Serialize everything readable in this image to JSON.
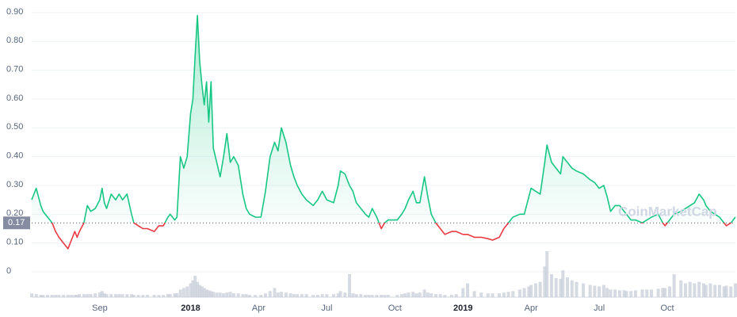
{
  "chart_data": {
    "type": "line",
    "watermark": "CoinMarketCap",
    "xlim": [
      0,
      31
    ],
    "xticks": [
      {
        "value": 3,
        "label": "Sep"
      },
      {
        "value": 7,
        "label": "2018"
      },
      {
        "value": 10,
        "label": "Apr"
      },
      {
        "value": 13,
        "label": "Jul"
      },
      {
        "value": 16,
        "label": "Oct"
      },
      {
        "value": 19,
        "label": "2019"
      },
      {
        "value": 22,
        "label": "Apr"
      },
      {
        "value": 25,
        "label": "Jul"
      },
      {
        "value": 28,
        "label": "Oct"
      }
    ],
    "ylim": [
      0,
      0.9
    ],
    "yticks": [
      0,
      {
        "value": 0.1,
        "label": "0.10"
      },
      {
        "value": 0.2,
        "label": "0.20"
      },
      {
        "value": 0.3,
        "label": "0.30"
      },
      {
        "value": 0.4,
        "label": "0.40"
      },
      {
        "value": 0.5,
        "label": "0.50"
      },
      {
        "value": 0.6,
        "label": "0.60"
      },
      {
        "value": 0.7,
        "label": "0.70"
      },
      {
        "value": 0.8,
        "label": "0.80"
      },
      {
        "value": 0.9,
        "label": "0.90"
      }
    ],
    "grid": true,
    "baseline": 0.17,
    "up_color": "#16c784",
    "down_color": "#ea3943",
    "volume_color": "#c4cad6",
    "x": [
      0,
      0.2,
      0.4,
      0.5,
      0.7,
      0.9,
      1.05,
      1.2,
      1.4,
      1.6,
      1.75,
      1.9,
      2.0,
      2.1,
      2.3,
      2.45,
      2.6,
      2.8,
      3.0,
      3.1,
      3.2,
      3.3,
      3.5,
      3.7,
      3.85,
      4.0,
      4.2,
      4.4,
      4.5,
      4.7,
      4.9,
      5.1,
      5.4,
      5.6,
      5.8,
      6.0,
      6.1,
      6.3,
      6.4,
      6.55,
      6.7,
      6.85,
      7.0,
      7.1,
      7.2,
      7.3,
      7.4,
      7.5,
      7.6,
      7.7,
      7.8,
      7.9,
      8.0,
      8.15,
      8.3,
      8.45,
      8.6,
      8.75,
      8.9,
      9.1,
      9.3,
      9.45,
      9.6,
      9.85,
      10.1,
      10.3,
      10.5,
      10.7,
      10.85,
      11.0,
      11.2,
      11.4,
      11.55,
      11.7,
      11.9,
      12.1,
      12.4,
      12.6,
      12.8,
      13.0,
      13.3,
      13.5,
      13.6,
      13.8,
      14.0,
      14.15,
      14.3,
      14.5,
      14.7,
      14.85,
      15.0,
      15.2,
      15.4,
      15.55,
      15.7,
      16.1,
      16.3,
      16.45,
      16.6,
      16.8,
      16.95,
      17.1,
      17.3,
      17.45,
      17.6,
      17.8,
      18.0,
      18.2,
      18.5,
      18.7,
      19.0,
      19.2,
      19.5,
      19.8,
      20.1,
      20.3,
      20.6,
      20.8,
      21.0,
      21.2,
      21.5,
      21.7,
      21.9,
      22.0,
      22.2,
      22.4,
      22.6,
      22.7,
      22.9,
      23.1,
      23.3,
      23.4,
      23.6,
      23.8,
      24.0,
      24.3,
      24.6,
      24.8,
      25.0,
      25.2,
      25.35,
      25.5,
      25.7,
      25.9,
      26.1,
      26.2,
      26.4,
      26.6,
      26.9,
      27.1,
      27.3,
      27.6,
      27.8,
      27.9,
      28.1,
      28.3,
      28.6,
      28.8,
      29.0,
      29.2,
      29.4,
      29.6,
      29.7,
      29.9,
      30.1,
      30.3,
      30.5,
      30.6,
      30.8,
      31.0
    ],
    "values": [
      0.25,
      0.29,
      0.23,
      0.21,
      0.19,
      0.17,
      0.14,
      0.12,
      0.1,
      0.08,
      0.11,
      0.14,
      0.12,
      0.14,
      0.17,
      0.23,
      0.21,
      0.22,
      0.25,
      0.29,
      0.24,
      0.22,
      0.27,
      0.25,
      0.27,
      0.25,
      0.27,
      0.2,
      0.17,
      0.16,
      0.15,
      0.15,
      0.14,
      0.16,
      0.16,
      0.19,
      0.2,
      0.18,
      0.19,
      0.4,
      0.36,
      0.4,
      0.55,
      0.6,
      0.75,
      0.89,
      0.73,
      0.65,
      0.58,
      0.66,
      0.52,
      0.66,
      0.43,
      0.38,
      0.33,
      0.4,
      0.48,
      0.38,
      0.4,
      0.37,
      0.27,
      0.22,
      0.2,
      0.19,
      0.19,
      0.28,
      0.4,
      0.45,
      0.42,
      0.5,
      0.45,
      0.37,
      0.33,
      0.3,
      0.27,
      0.25,
      0.23,
      0.25,
      0.28,
      0.25,
      0.24,
      0.3,
      0.35,
      0.34,
      0.3,
      0.28,
      0.24,
      0.22,
      0.2,
      0.19,
      0.22,
      0.19,
      0.15,
      0.17,
      0.18,
      0.18,
      0.2,
      0.22,
      0.25,
      0.28,
      0.24,
      0.24,
      0.33,
      0.26,
      0.2,
      0.17,
      0.15,
      0.13,
      0.14,
      0.14,
      0.13,
      0.13,
      0.12,
      0.12,
      0.115,
      0.11,
      0.12,
      0.15,
      0.17,
      0.19,
      0.2,
      0.2,
      0.26,
      0.29,
      0.28,
      0.27,
      0.38,
      0.44,
      0.38,
      0.36,
      0.34,
      0.4,
      0.38,
      0.36,
      0.35,
      0.34,
      0.32,
      0.31,
      0.29,
      0.3,
      0.26,
      0.21,
      0.23,
      0.23,
      0.21,
      0.2,
      0.18,
      0.18,
      0.17,
      0.18,
      0.19,
      0.2,
      0.17,
      0.16,
      0.18,
      0.2,
      0.21,
      0.22,
      0.23,
      0.24,
      0.27,
      0.25,
      0.23,
      0.21,
      0.2,
      0.19,
      0.17,
      0.16,
      0.17,
      0.19
    ],
    "volume": [
      5,
      4,
      3,
      3,
      3,
      3,
      3,
      3,
      3,
      3,
      3,
      3,
      3,
      4,
      4,
      4,
      4,
      5,
      6,
      8,
      5,
      4,
      4,
      4,
      4,
      4,
      4,
      4,
      3,
      3,
      3,
      3,
      3,
      3,
      3,
      4,
      4,
      5,
      5,
      10,
      12,
      14,
      18,
      22,
      28,
      20,
      16,
      14,
      12,
      10,
      9,
      8,
      7,
      6,
      6,
      5,
      6,
      7,
      5,
      5,
      4,
      4,
      3,
      3,
      3,
      5,
      8,
      12,
      6,
      7,
      6,
      5,
      4,
      4,
      4,
      4,
      3,
      3,
      4,
      4,
      4,
      5,
      8,
      6,
      30,
      5,
      4,
      4,
      3,
      3,
      3,
      3,
      3,
      3,
      3,
      3,
      4,
      5,
      6,
      7,
      5,
      6,
      10,
      6,
      5,
      4,
      4,
      3,
      3,
      4,
      12,
      18,
      8,
      6,
      5,
      5,
      5,
      6,
      7,
      8,
      10,
      12,
      14,
      16,
      18,
      20,
      40,
      60,
      30,
      25,
      24,
      35,
      26,
      22,
      20,
      18,
      16,
      15,
      14,
      16,
      12,
      10,
      10,
      9,
      9,
      8,
      8,
      9,
      10,
      10,
      10,
      11,
      12,
      12,
      14,
      30,
      22,
      18,
      20,
      18,
      20,
      18,
      16,
      18,
      16,
      16,
      14,
      15,
      14,
      18
    ]
  }
}
